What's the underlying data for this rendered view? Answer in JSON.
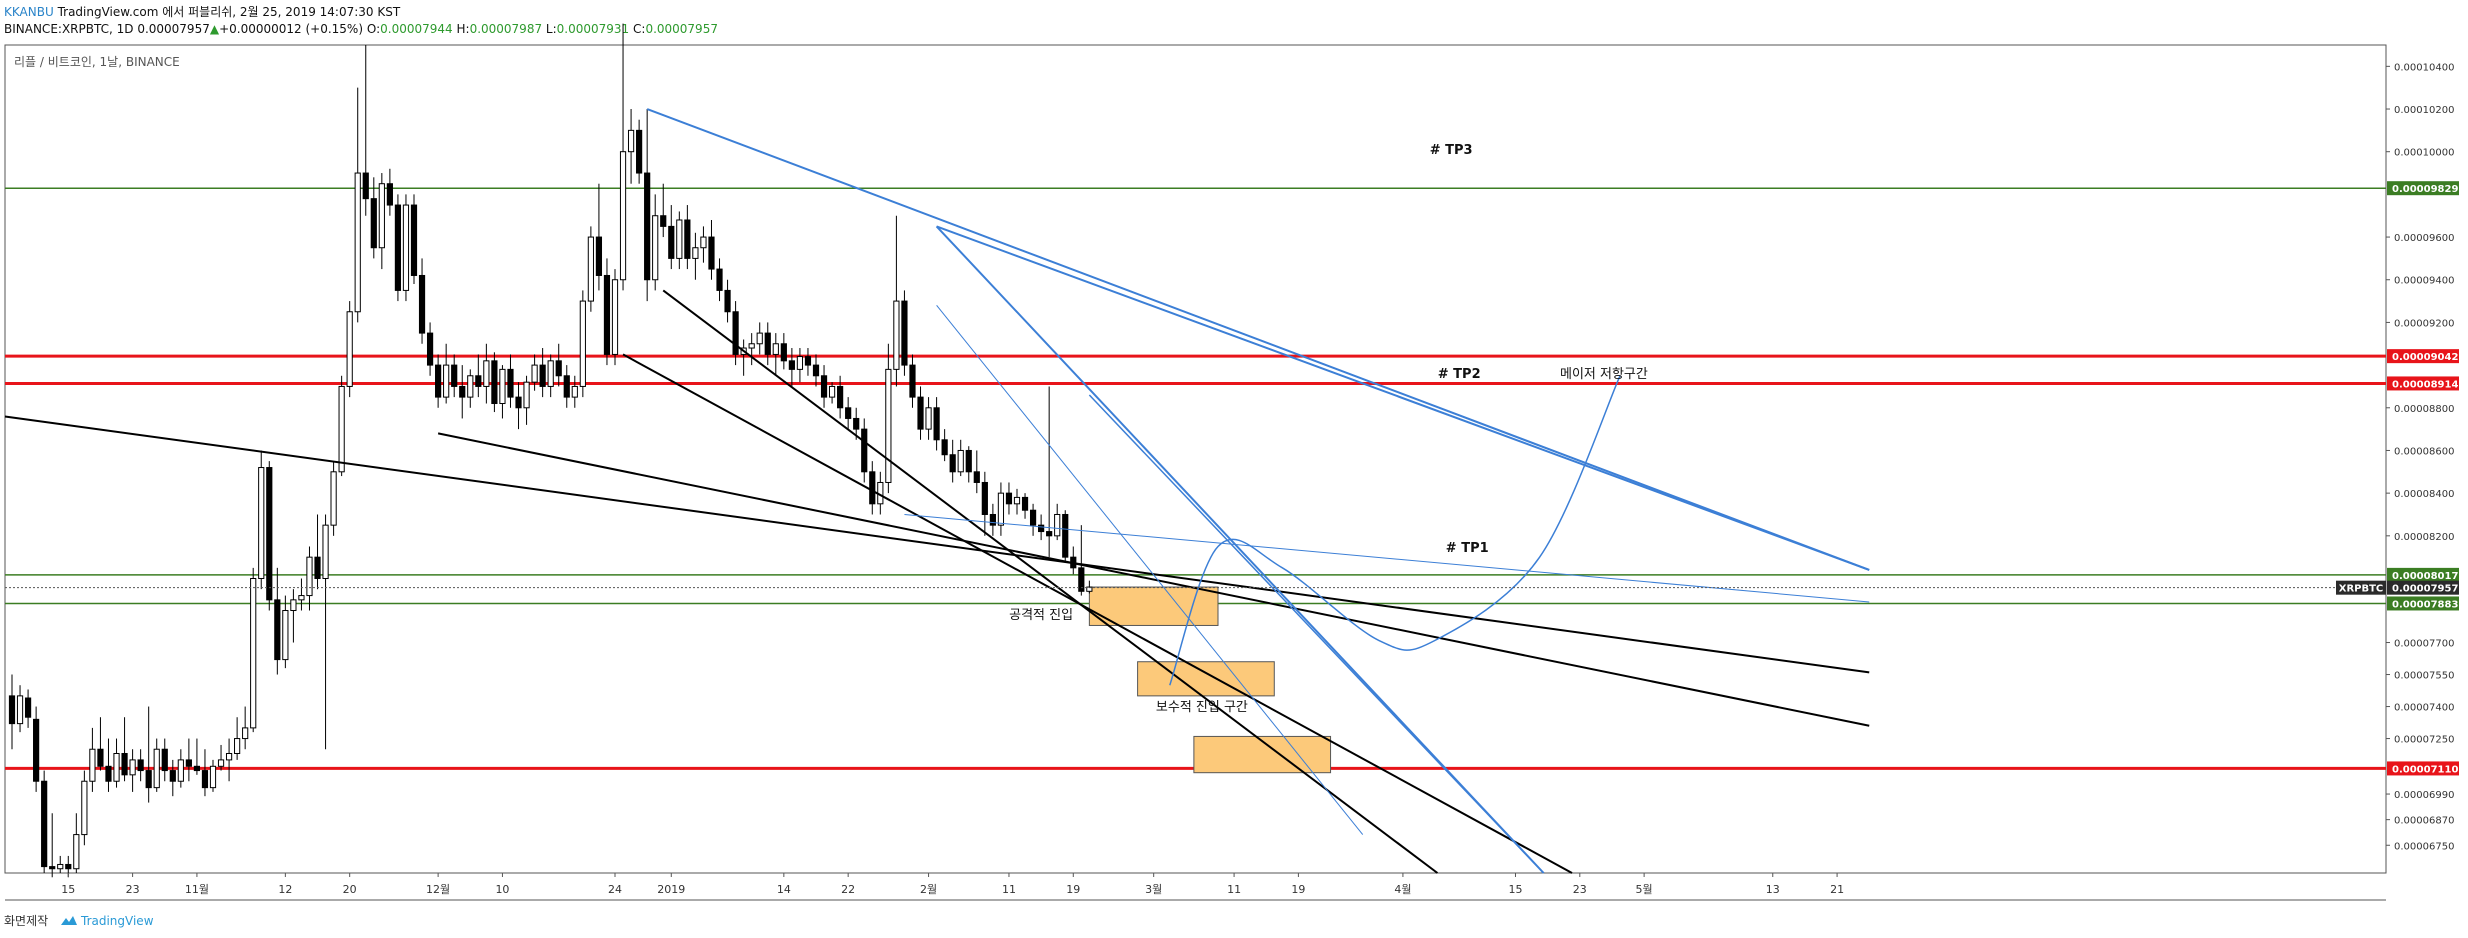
{
  "header": {
    "author": "KKANBU",
    "published_text": "TradingView.com 에서 퍼블리쉬, 2월 25, 2019 14:07:30 KST",
    "symbol_text": "BINANCE:XRPBTC, 1D",
    "last_value": "0.00007957",
    "change_text": "+0.00000012 (+0.15%)",
    "o_label": "O:",
    "o_value": "0.00007944",
    "h_label": "H:",
    "h_value": "0.00007987",
    "l_label": "L:",
    "l_value": "0.00007931",
    "c_label": "C:",
    "c_value": "0.00007957"
  },
  "footer": {
    "made_with": "화면제작",
    "brand": "TradingView"
  },
  "colors": {
    "up": "#ffffff",
    "down": "#000000",
    "red_level": "#e8141a",
    "green_level": "#3b7d23",
    "trend_blue": "#3c7fd6",
    "zone": "#fcc97a"
  },
  "chart_data": {
    "type": "candlestick",
    "title": "리플 / 비트코인, 1날, BINANCE",
    "ylim": [
      6.62e-05,
      0.000105
    ],
    "y_ticks": [
      "0.00010400",
      "0.00010200",
      "0.00010000",
      "0.00009600",
      "0.00009400",
      "0.00009200",
      "0.00008800",
      "0.00008600",
      "0.00008400",
      "0.00008200",
      "0.00007700",
      "0.00007550",
      "0.00007400",
      "0.00007250",
      "0.00006990",
      "0.00006870",
      "0.00006750"
    ],
    "x_ticks": [
      {
        "i": 7,
        "label": "15"
      },
      {
        "i": 15,
        "label": "23"
      },
      {
        "i": 23,
        "label": "11월"
      },
      {
        "i": 34,
        "label": "12"
      },
      {
        "i": 42,
        "label": "20"
      },
      {
        "i": 53,
        "label": "12월"
      },
      {
        "i": 61,
        "label": "10"
      },
      {
        "i": 75,
        "label": "24"
      },
      {
        "i": 82,
        "label": "2019"
      },
      {
        "i": 96,
        "label": "14"
      },
      {
        "i": 104,
        "label": "22"
      },
      {
        "i": 114,
        "label": "2월"
      },
      {
        "i": 124,
        "label": "11"
      },
      {
        "i": 132,
        "label": "19"
      },
      {
        "i": 142,
        "label": "3월"
      },
      {
        "i": 152,
        "label": "11"
      },
      {
        "i": 160,
        "label": "19"
      },
      {
        "i": 173,
        "label": "4월"
      },
      {
        "i": 187,
        "label": "15"
      },
      {
        "i": 195,
        "label": "23"
      },
      {
        "i": 203,
        "label": "5월"
      },
      {
        "i": 219,
        "label": "13"
      },
      {
        "i": 227,
        "label": "21"
      }
    ],
    "price_tags": [
      {
        "label": "0.00009829",
        "value": 9.829e-05,
        "color": "#3b7d23"
      },
      {
        "label": "0.00009042",
        "value": 9.042e-05,
        "color": "#e8141a"
      },
      {
        "label": "0.00008914",
        "value": 8.914e-05,
        "color": "#e8141a"
      },
      {
        "label": "0.00008017",
        "value": 8.017e-05,
        "color": "#3b7d23"
      },
      {
        "label": "0.00007957",
        "value": 7.957e-05,
        "color": "#2b2b2b",
        "symbol": "XRPBTC"
      },
      {
        "label": "0.00007883",
        "value": 7.883e-05,
        "color": "#3b7d23"
      },
      {
        "label": "0.00007110",
        "value": 7.11e-05,
        "color": "#e8141a"
      }
    ],
    "hlines": [
      {
        "value": 9.829e-05,
        "color": "#3b7d23",
        "width": 1.5
      },
      {
        "value": 9.042e-05,
        "color": "#e8141a",
        "width": 3
      },
      {
        "value": 8.914e-05,
        "color": "#e8141a",
        "width": 3
      },
      {
        "value": 8.017e-05,
        "color": "#3b7d23",
        "width": 1.5
      },
      {
        "value": 7.883e-05,
        "color": "#3b7d23",
        "width": 1.5
      },
      {
        "value": 7.11e-05,
        "color": "#e8141a",
        "width": 3
      }
    ],
    "trendlines": [
      {
        "p1": [
          -1,
          8.76e-05
        ],
        "p2": [
          231,
          7.56e-05
        ],
        "color": "#000000",
        "width": 2
      },
      {
        "p1": [
          53,
          8.68e-05
        ],
        "p2": [
          231,
          7.31e-05
        ],
        "color": "#000000",
        "width": 2
      },
      {
        "p1": [
          76,
          9.05e-05
        ],
        "p2": [
          195,
          6.6e-05
        ],
        "color": "#000000",
        "width": 2
      },
      {
        "p1": [
          81,
          9.35e-05
        ],
        "p2": [
          178,
          6.6e-05
        ],
        "color": "#000000",
        "width": 2
      },
      {
        "p1": [
          79,
          0.000102
        ],
        "p2": [
          231,
          8.04e-05
        ],
        "color": "#3c7fd6",
        "width": 2
      },
      {
        "p1": [
          115,
          9.65e-05
        ],
        "p2": [
          231,
          8.04e-05
        ],
        "color": "#3c7fd6",
        "width": 2
      },
      {
        "p1": [
          115,
          9.65e-05
        ],
        "p2": [
          191,
          6.6e-05
        ],
        "color": "#3c7fd6",
        "width": 2
      },
      {
        "p1": [
          134,
          8.86e-05
        ],
        "p2": [
          191,
          6.6e-05
        ],
        "color": "#3c7fd6",
        "width": 1.5
      },
      {
        "p1": [
          115,
          9.28e-05
        ],
        "p2": [
          168,
          6.8e-05
        ],
        "color": "#3c7fd6",
        "width": 1
      },
      {
        "p1": [
          111,
          8.3e-05
        ],
        "p2": [
          231,
          7.89e-05
        ],
        "color": "#3c7fd6",
        "width": 1
      }
    ],
    "zones": [
      {
        "i0": 134,
        "i1": 150,
        "top": 7.96e-05,
        "bottom": 7.78e-05
      },
      {
        "i0": 140,
        "i1": 157,
        "top": 7.61e-05,
        "bottom": 7.45e-05
      },
      {
        "i0": 147,
        "i1": 164,
        "top": 7.26e-05,
        "bottom": 7.09e-05
      }
    ],
    "curve": [
      [
        144,
        7.5e-05
      ],
      [
        150,
        8.15e-05
      ],
      [
        158,
        8.05e-05
      ],
      [
        170,
        7.71e-05
      ],
      [
        177,
        7.71e-05
      ],
      [
        190,
        8.1e-05
      ],
      [
        200,
        8.95e-05
      ]
    ],
    "annotations": [
      {
        "text": "# TP3",
        "i": 179,
        "value": 9.99e-05
      },
      {
        "text": "# TP2",
        "i": 180,
        "value": 8.94e-05
      },
      {
        "text": "메이저 저항구간",
        "i": 198,
        "value": 8.94e-05
      },
      {
        "text": "# TP1",
        "i": 181,
        "value": 8.125e-05
      },
      {
        "text": "공격적 진입",
        "i": 128,
        "value": 7.81e-05
      },
      {
        "text": "보수적 진입 구간",
        "i": 148,
        "value": 7.38e-05
      }
    ],
    "candles": [
      {
        "o": 7.45,
        "h": 7.55,
        "l": 7.2,
        "c": 7.32
      },
      {
        "o": 7.32,
        "h": 7.5,
        "l": 7.28,
        "c": 7.45
      },
      {
        "o": 7.44,
        "h": 7.48,
        "l": 7.3,
        "c": 7.35
      },
      {
        "o": 7.34,
        "h": 7.4,
        "l": 7.0,
        "c": 7.05
      },
      {
        "o": 7.05,
        "h": 7.1,
        "l": 6.62,
        "c": 6.65
      },
      {
        "o": 6.65,
        "h": 6.9,
        "l": 6.6,
        "c": 6.64
      },
      {
        "o": 6.64,
        "h": 6.7,
        "l": 6.62,
        "c": 6.66
      },
      {
        "o": 6.66,
        "h": 6.7,
        "l": 6.6,
        "c": 6.64
      },
      {
        "o": 6.64,
        "h": 6.9,
        "l": 6.62,
        "c": 6.8
      },
      {
        "o": 6.8,
        "h": 7.1,
        "l": 6.75,
        "c": 7.05
      },
      {
        "o": 7.05,
        "h": 7.3,
        "l": 7.0,
        "c": 7.2
      },
      {
        "o": 7.2,
        "h": 7.35,
        "l": 7.1,
        "c": 7.12
      },
      {
        "o": 7.12,
        "h": 7.25,
        "l": 7.0,
        "c": 7.05
      },
      {
        "o": 7.05,
        "h": 7.25,
        "l": 7.02,
        "c": 7.18
      },
      {
        "o": 7.18,
        "h": 7.35,
        "l": 7.05,
        "c": 7.08
      },
      {
        "o": 7.08,
        "h": 7.2,
        "l": 7.0,
        "c": 7.15
      },
      {
        "o": 7.15,
        "h": 7.2,
        "l": 7.05,
        "c": 7.1
      },
      {
        "o": 7.1,
        "h": 7.4,
        "l": 6.95,
        "c": 7.02
      },
      {
        "o": 7.02,
        "h": 7.25,
        "l": 7.0,
        "c": 7.2
      },
      {
        "o": 7.2,
        "h": 7.25,
        "l": 7.05,
        "c": 7.1
      },
      {
        "o": 7.1,
        "h": 7.15,
        "l": 6.98,
        "c": 7.05
      },
      {
        "o": 7.05,
        "h": 7.2,
        "l": 7.02,
        "c": 7.15
      },
      {
        "o": 7.15,
        "h": 7.25,
        "l": 7.05,
        "c": 7.12
      },
      {
        "o": 7.12,
        "h": 7.25,
        "l": 7.08,
        "c": 7.1
      },
      {
        "o": 7.1,
        "h": 7.2,
        "l": 6.98,
        "c": 7.02
      },
      {
        "o": 7.02,
        "h": 7.15,
        "l": 7.0,
        "c": 7.12
      },
      {
        "o": 7.12,
        "h": 7.22,
        "l": 7.1,
        "c": 7.15
      },
      {
        "o": 7.15,
        "h": 7.25,
        "l": 7.05,
        "c": 7.18
      },
      {
        "o": 7.18,
        "h": 7.35,
        "l": 7.15,
        "c": 7.25
      },
      {
        "o": 7.25,
        "h": 7.4,
        "l": 7.2,
        "c": 7.3
      },
      {
        "o": 7.3,
        "h": 8.05,
        "l": 7.28,
        "c": 8.0
      },
      {
        "o": 8.0,
        "h": 8.6,
        "l": 7.95,
        "c": 8.52
      },
      {
        "o": 8.52,
        "h": 8.55,
        "l": 7.85,
        "c": 7.9
      },
      {
        "o": 7.9,
        "h": 8.05,
        "l": 7.55,
        "c": 7.62
      },
      {
        "o": 7.62,
        "h": 7.92,
        "l": 7.58,
        "c": 7.85
      },
      {
        "o": 7.85,
        "h": 7.95,
        "l": 7.7,
        "c": 7.9
      },
      {
        "o": 7.9,
        "h": 8.0,
        "l": 7.85,
        "c": 7.92
      },
      {
        "o": 7.92,
        "h": 8.15,
        "l": 7.85,
        "c": 8.1
      },
      {
        "o": 8.1,
        "h": 8.3,
        "l": 7.95,
        "c": 8.0
      },
      {
        "o": 8.0,
        "h": 8.3,
        "l": 7.2,
        "c": 8.25
      },
      {
        "o": 8.25,
        "h": 8.55,
        "l": 8.2,
        "c": 8.5
      },
      {
        "o": 8.5,
        "h": 8.95,
        "l": 8.48,
        "c": 8.9
      },
      {
        "o": 8.9,
        "h": 9.3,
        "l": 8.85,
        "c": 9.25
      },
      {
        "o": 9.25,
        "h": 10.3,
        "l": 9.2,
        "c": 9.9
      },
      {
        "o": 9.9,
        "h": 10.5,
        "l": 9.7,
        "c": 9.78
      },
      {
        "o": 9.78,
        "h": 9.88,
        "l": 9.5,
        "c": 9.55
      },
      {
        "o": 9.55,
        "h": 9.9,
        "l": 9.45,
        "c": 9.85
      },
      {
        "o": 9.85,
        "h": 9.92,
        "l": 9.7,
        "c": 9.75
      },
      {
        "o": 9.75,
        "h": 9.8,
        "l": 9.3,
        "c": 9.35
      },
      {
        "o": 9.35,
        "h": 9.8,
        "l": 9.3,
        "c": 9.75
      },
      {
        "o": 9.75,
        "h": 9.8,
        "l": 9.38,
        "c": 9.42
      },
      {
        "o": 9.42,
        "h": 9.5,
        "l": 9.1,
        "c": 9.15
      },
      {
        "o": 9.15,
        "h": 9.2,
        "l": 8.95,
        "c": 9.0
      },
      {
        "o": 9.0,
        "h": 9.05,
        "l": 8.8,
        "c": 8.85
      },
      {
        "o": 8.85,
        "h": 9.1,
        "l": 8.82,
        "c": 9.0
      },
      {
        "o": 9.0,
        "h": 9.05,
        "l": 8.85,
        "c": 8.9
      },
      {
        "o": 8.9,
        "h": 9.0,
        "l": 8.75,
        "c": 8.85
      },
      {
        "o": 8.85,
        "h": 8.98,
        "l": 8.8,
        "c": 8.95
      },
      {
        "o": 8.95,
        "h": 9.05,
        "l": 8.85,
        "c": 8.9
      },
      {
        "o": 8.9,
        "h": 9.1,
        "l": 8.82,
        "c": 9.02
      },
      {
        "o": 9.02,
        "h": 9.06,
        "l": 8.78,
        "c": 8.82
      },
      {
        "o": 8.82,
        "h": 9.0,
        "l": 8.75,
        "c": 8.98
      },
      {
        "o": 8.98,
        "h": 9.05,
        "l": 8.8,
        "c": 8.85
      },
      {
        "o": 8.85,
        "h": 8.92,
        "l": 8.7,
        "c": 8.8
      },
      {
        "o": 8.8,
        "h": 8.95,
        "l": 8.72,
        "c": 8.92
      },
      {
        "o": 8.92,
        "h": 9.05,
        "l": 8.88,
        "c": 9.0
      },
      {
        "o": 9.0,
        "h": 9.08,
        "l": 8.85,
        "c": 8.9
      },
      {
        "o": 8.9,
        "h": 9.05,
        "l": 8.85,
        "c": 9.02
      },
      {
        "o": 9.02,
        "h": 9.1,
        "l": 8.9,
        "c": 8.95
      },
      {
        "o": 8.95,
        "h": 9.0,
        "l": 8.8,
        "c": 8.85
      },
      {
        "o": 8.85,
        "h": 8.95,
        "l": 8.8,
        "c": 8.9
      },
      {
        "o": 8.9,
        "h": 9.35,
        "l": 8.85,
        "c": 9.3
      },
      {
        "o": 9.3,
        "h": 9.65,
        "l": 9.25,
        "c": 9.6
      },
      {
        "o": 9.6,
        "h": 9.85,
        "l": 9.35,
        "c": 9.42
      },
      {
        "o": 9.42,
        "h": 9.5,
        "l": 9.0,
        "c": 9.05
      },
      {
        "o": 9.05,
        "h": 9.45,
        "l": 9.0,
        "c": 9.4
      },
      {
        "o": 9.4,
        "h": 10.6,
        "l": 9.35,
        "c": 10.0
      },
      {
        "o": 10.0,
        "h": 10.2,
        "l": 9.85,
        "c": 10.1
      },
      {
        "o": 10.1,
        "h": 10.15,
        "l": 9.85,
        "c": 9.9
      },
      {
        "o": 9.9,
        "h": 10.2,
        "l": 9.3,
        "c": 9.4
      },
      {
        "o": 9.4,
        "h": 9.8,
        "l": 9.35,
        "c": 9.7
      },
      {
        "o": 9.7,
        "h": 9.85,
        "l": 9.6,
        "c": 9.65
      },
      {
        "o": 9.65,
        "h": 9.75,
        "l": 9.45,
        "c": 9.5
      },
      {
        "o": 9.5,
        "h": 9.72,
        "l": 9.45,
        "c": 9.68
      },
      {
        "o": 9.68,
        "h": 9.75,
        "l": 9.45,
        "c": 9.5
      },
      {
        "o": 9.5,
        "h": 9.62,
        "l": 9.4,
        "c": 9.55
      },
      {
        "o": 9.55,
        "h": 9.65,
        "l": 9.48,
        "c": 9.6
      },
      {
        "o": 9.6,
        "h": 9.68,
        "l": 9.4,
        "c": 9.45
      },
      {
        "o": 9.45,
        "h": 9.5,
        "l": 9.3,
        "c": 9.35
      },
      {
        "o": 9.35,
        "h": 9.4,
        "l": 9.2,
        "c": 9.25
      },
      {
        "o": 9.25,
        "h": 9.3,
        "l": 9.0,
        "c": 9.05
      },
      {
        "o": 9.05,
        "h": 9.12,
        "l": 8.95,
        "c": 9.08
      },
      {
        "o": 9.08,
        "h": 9.15,
        "l": 9.0,
        "c": 9.1
      },
      {
        "o": 9.1,
        "h": 9.2,
        "l": 9.05,
        "c": 9.15
      },
      {
        "o": 9.15,
        "h": 9.2,
        "l": 9.0,
        "c": 9.05
      },
      {
        "o": 9.05,
        "h": 9.15,
        "l": 8.95,
        "c": 9.1
      },
      {
        "o": 9.1,
        "h": 9.15,
        "l": 8.98,
        "c": 9.02
      },
      {
        "o": 9.02,
        "h": 9.08,
        "l": 8.9,
        "c": 8.98
      },
      {
        "o": 8.98,
        "h": 9.08,
        "l": 8.92,
        "c": 9.04
      },
      {
        "o": 9.04,
        "h": 9.08,
        "l": 8.95,
        "c": 9.0
      },
      {
        "o": 9.0,
        "h": 9.05,
        "l": 8.9,
        "c": 8.95
      },
      {
        "o": 8.95,
        "h": 9.0,
        "l": 8.8,
        "c": 8.85
      },
      {
        "o": 8.85,
        "h": 8.92,
        "l": 8.82,
        "c": 8.9
      },
      {
        "o": 8.9,
        "h": 8.95,
        "l": 8.75,
        "c": 8.8
      },
      {
        "o": 8.8,
        "h": 8.85,
        "l": 8.7,
        "c": 8.75
      },
      {
        "o": 8.75,
        "h": 8.8,
        "l": 8.65,
        "c": 8.7
      },
      {
        "o": 8.7,
        "h": 8.75,
        "l": 8.45,
        "c": 8.5
      },
      {
        "o": 8.5,
        "h": 8.55,
        "l": 8.3,
        "c": 8.35
      },
      {
        "o": 8.35,
        "h": 8.5,
        "l": 8.3,
        "c": 8.45
      },
      {
        "o": 8.45,
        "h": 9.1,
        "l": 8.4,
        "c": 8.98
      },
      {
        "o": 8.98,
        "h": 9.7,
        "l": 8.9,
        "c": 9.3
      },
      {
        "o": 9.3,
        "h": 9.35,
        "l": 8.95,
        "c": 9.0
      },
      {
        "o": 9.0,
        "h": 9.05,
        "l": 8.8,
        "c": 8.85
      },
      {
        "o": 8.85,
        "h": 8.9,
        "l": 8.65,
        "c": 8.7
      },
      {
        "o": 8.7,
        "h": 8.85,
        "l": 8.65,
        "c": 8.8
      },
      {
        "o": 8.8,
        "h": 8.85,
        "l": 8.6,
        "c": 8.65
      },
      {
        "o": 8.65,
        "h": 8.7,
        "l": 8.55,
        "c": 8.58
      },
      {
        "o": 8.58,
        "h": 8.65,
        "l": 8.45,
        "c": 8.5
      },
      {
        "o": 8.5,
        "h": 8.65,
        "l": 8.48,
        "c": 8.6
      },
      {
        "o": 8.6,
        "h": 8.62,
        "l": 8.45,
        "c": 8.5
      },
      {
        "o": 8.5,
        "h": 8.6,
        "l": 8.4,
        "c": 8.45
      },
      {
        "o": 8.45,
        "h": 8.5,
        "l": 8.2,
        "c": 8.3
      },
      {
        "o": 8.3,
        "h": 8.35,
        "l": 8.2,
        "c": 8.25
      },
      {
        "o": 8.25,
        "h": 8.45,
        "l": 8.2,
        "c": 8.4
      },
      {
        "o": 8.4,
        "h": 8.45,
        "l": 8.3,
        "c": 8.35
      },
      {
        "o": 8.35,
        "h": 8.42,
        "l": 8.3,
        "c": 8.38
      },
      {
        "o": 8.38,
        "h": 8.4,
        "l": 8.28,
        "c": 8.32
      },
      {
        "o": 8.32,
        "h": 8.35,
        "l": 8.2,
        "c": 8.25
      },
      {
        "o": 8.25,
        "h": 8.3,
        "l": 8.18,
        "c": 8.22
      },
      {
        "o": 8.22,
        "h": 8.9,
        "l": 8.1,
        "c": 8.2
      },
      {
        "o": 8.2,
        "h": 8.35,
        "l": 8.18,
        "c": 8.3
      },
      {
        "o": 8.3,
        "h": 8.32,
        "l": 8.08,
        "c": 8.1
      },
      {
        "o": 8.1,
        "h": 8.15,
        "l": 8.02,
        "c": 8.05
      },
      {
        "o": 8.05,
        "h": 8.25,
        "l": 7.92,
        "c": 7.94
      },
      {
        "o": 7.94,
        "h": 7.99,
        "l": 7.93,
        "c": 7.96
      }
    ]
  }
}
